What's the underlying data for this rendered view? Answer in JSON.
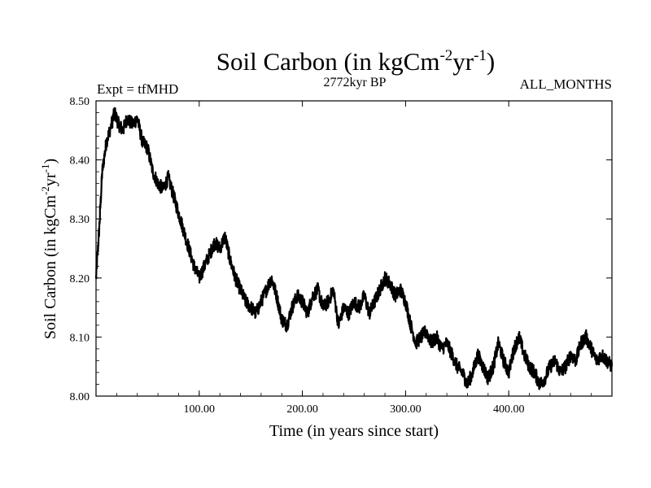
{
  "chart_data": {
    "type": "line",
    "title": {
      "prefix": "Soil Carbon (in kgCm",
      "sup1": "-2",
      "mid": "yr",
      "sup2": "-1",
      "suffix": ")"
    },
    "subtitle": {
      "left": "Expt = tfMHD",
      "center": "2772kyr BP",
      "right": "ALL_MONTHS"
    },
    "xlabel": "Time (in years since start)",
    "ylabel": {
      "prefix": "Soil Carbon (in kgCm",
      "sup1": "-2",
      "mid": "yr",
      "sup2": "-1",
      "suffix": ")"
    },
    "xlim": [
      0,
      500
    ],
    "ylim": [
      8.0,
      8.5
    ],
    "xticks": [
      100,
      200,
      300,
      400
    ],
    "xtick_labels": [
      "100.00",
      "200.00",
      "300.00",
      "400.00"
    ],
    "yticks": [
      8.0,
      8.1,
      8.2,
      8.3,
      8.4,
      8.5
    ],
    "ytick_labels": [
      "8.00",
      "8.10",
      "8.20",
      "8.30",
      "8.40",
      "8.50"
    ],
    "grid": false,
    "line_color": "#000000",
    "series": [
      {
        "name": "Soil Carbon",
        "x": [
          0,
          3,
          6,
          10,
          15,
          18,
          22,
          26,
          30,
          35,
          40,
          45,
          50,
          55,
          60,
          65,
          70,
          75,
          80,
          85,
          90,
          95,
          100,
          105,
          110,
          115,
          120,
          125,
          130,
          135,
          140,
          145,
          150,
          155,
          160,
          165,
          170,
          175,
          180,
          185,
          190,
          195,
          200,
          205,
          210,
          215,
          220,
          225,
          230,
          235,
          240,
          245,
          250,
          255,
          260,
          265,
          270,
          275,
          280,
          285,
          290,
          295,
          300,
          305,
          310,
          315,
          320,
          325,
          330,
          335,
          340,
          345,
          350,
          355,
          360,
          365,
          370,
          375,
          380,
          385,
          390,
          395,
          400,
          405,
          410,
          415,
          420,
          425,
          430,
          435,
          440,
          445,
          450,
          455,
          460,
          465,
          470,
          475,
          480,
          485,
          490,
          495,
          500
        ],
        "values": [
          8.2,
          8.28,
          8.38,
          8.43,
          8.46,
          8.48,
          8.46,
          8.45,
          8.47,
          8.46,
          8.47,
          8.43,
          8.42,
          8.38,
          8.36,
          8.35,
          8.37,
          8.34,
          8.31,
          8.28,
          8.25,
          8.22,
          8.2,
          8.22,
          8.24,
          8.26,
          8.25,
          8.27,
          8.23,
          8.2,
          8.18,
          8.16,
          8.15,
          8.14,
          8.16,
          8.18,
          8.2,
          8.17,
          8.13,
          8.12,
          8.15,
          8.17,
          8.16,
          8.14,
          8.17,
          8.18,
          8.15,
          8.16,
          8.18,
          8.12,
          8.15,
          8.14,
          8.16,
          8.15,
          8.17,
          8.14,
          8.16,
          8.18,
          8.2,
          8.19,
          8.17,
          8.18,
          8.16,
          8.12,
          8.09,
          8.1,
          8.11,
          8.09,
          8.1,
          8.08,
          8.09,
          8.07,
          8.05,
          8.04,
          8.02,
          8.04,
          8.07,
          8.05,
          8.03,
          8.05,
          8.09,
          8.06,
          8.04,
          8.08,
          8.1,
          8.07,
          8.05,
          8.04,
          8.02,
          8.03,
          8.05,
          8.06,
          8.04,
          8.05,
          8.07,
          8.06,
          8.09,
          8.1,
          8.08,
          8.06,
          8.07,
          8.06,
          8.05
        ]
      }
    ]
  }
}
